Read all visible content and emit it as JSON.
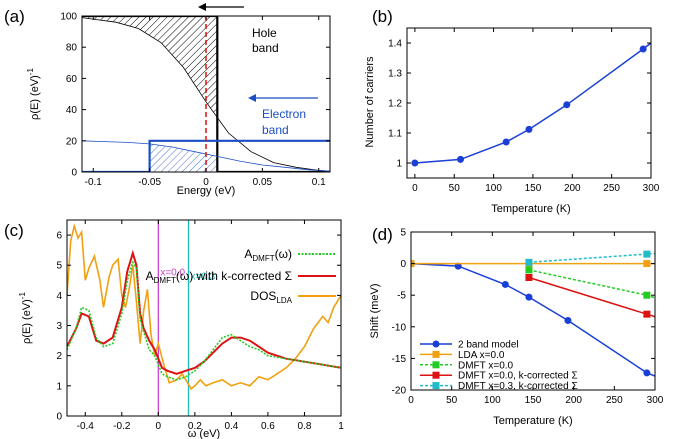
{
  "chart_data": [
    {
      "panel_label": "(a)",
      "type": "area",
      "xlabel": "Energy (eV)",
      "ylabel": "ρ(E) (eV)",
      "ylabel_sup": "-1",
      "xlim": [
        -0.11,
        0.11
      ],
      "ylim": [
        0,
        100
      ],
      "xticks": [
        -0.1,
        -0.05,
        0,
        0.05,
        0.1
      ],
      "xticklabels": [
        "-0.1",
        "-0.05",
        "0",
        "0.05",
        "0.1"
      ],
      "yticks": [
        0,
        20,
        40,
        60,
        80,
        100
      ],
      "annotations": {
        "hole_band_line1": "Hole",
        "hole_band_line2": "band",
        "electron_band_line1": "Electron",
        "electron_band_line2": "band"
      },
      "series": [
        {
          "key": "hole_dos",
          "color": "#000000",
          "x": [
            -0.11,
            -0.08,
            -0.06,
            -0.04,
            -0.02,
            0.0,
            0.02,
            0.04,
            0.06,
            0.08,
            0.1,
            0.11
          ],
          "y": [
            99,
            96,
            92,
            83,
            67,
            45,
            25,
            13,
            6,
            3,
            1,
            0.5
          ]
        },
        {
          "key": "hole_step",
          "color": "#000000",
          "x": [
            -0.11,
            0.01,
            0.01,
            0.11
          ],
          "y": [
            100,
            100,
            0,
            0
          ]
        },
        {
          "key": "electron_dos",
          "color": "#1a4fc4",
          "x": [
            -0.11,
            -0.09,
            -0.07,
            -0.05,
            -0.03,
            -0.01,
            0.01,
            0.03,
            0.05,
            0.07,
            0.09,
            0.11
          ],
          "y": [
            20,
            19.5,
            19,
            18,
            16,
            13,
            10,
            7,
            4.5,
            3,
            1.5,
            0.5
          ]
        },
        {
          "key": "electron_step",
          "color": "#1a4fc4",
          "x": [
            -0.11,
            -0.05,
            -0.05,
            0.11
          ],
          "y": [
            0,
            0,
            20,
            20
          ]
        }
      ],
      "fermi_level_x": 0.0,
      "hole_fermi_x": 0.01
    },
    {
      "panel_label": "(b)",
      "type": "line",
      "xlabel": "Temperature (K)",
      "ylabel": "Number of carriers",
      "xlim": [
        -10,
        300
      ],
      "ylim": [
        0.95,
        1.45
      ],
      "xticks": [
        0,
        50,
        100,
        150,
        200,
        250,
        300
      ],
      "yticks": [
        1,
        1.1,
        1.2,
        1.3,
        1.4
      ],
      "yticklabels": [
        "1",
        "1.1",
        "1.2",
        "1.3",
        "1.4"
      ],
      "series": [
        {
          "key": "carriers",
          "color": "#1a3fd6",
          "x": [
            0,
            58,
            116,
            145,
            193,
            290,
            300
          ],
          "y": [
            1.0,
            1.012,
            1.07,
            1.112,
            1.194,
            1.38,
            1.4
          ],
          "markers": [
            true,
            true,
            true,
            true,
            true,
            true,
            false
          ]
        }
      ]
    },
    {
      "panel_label": "(c)",
      "type": "line",
      "xlabel": "ω (eV)",
      "ylabel": "ρ(E) (eV)",
      "ylabel_sup": "-1",
      "xlim": [
        -0.5,
        1.0
      ],
      "ylim": [
        0,
        6.5
      ],
      "xticks": [
        -0.4,
        -0.2,
        0,
        0.2,
        0.4,
        0.6,
        0.8,
        1.0
      ],
      "xticklabels": [
        "-0.4",
        "-0.2",
        "0",
        "0.2",
        "0.4",
        "0.6",
        "0.8",
        "1"
      ],
      "yticks": [
        0,
        1,
        2,
        3,
        4,
        5,
        6
      ],
      "vlines": [
        {
          "x": 0.0,
          "color": "#cc44cc",
          "label": "x=0.0"
        },
        {
          "x": 0.165,
          "color": "#22bbbb",
          "label": "x=0.3"
        }
      ],
      "series": [
        {
          "key": "dmft",
          "label_main": "A",
          "label_sub": "DMFT",
          "label_tail": "(ω)",
          "color": "#22cc22",
          "dashed": true,
          "x": [
            -0.5,
            -0.45,
            -0.42,
            -0.38,
            -0.34,
            -0.3,
            -0.25,
            -0.2,
            -0.17,
            -0.14,
            -0.12,
            -0.1,
            -0.08,
            -0.05,
            -0.02,
            0.02,
            0.05,
            0.1,
            0.15,
            0.2,
            0.25,
            0.3,
            0.35,
            0.4,
            0.45,
            0.5,
            0.55,
            0.6,
            0.7,
            0.8,
            0.9,
            1.0
          ],
          "y": [
            2.2,
            2.9,
            3.6,
            3.5,
            2.6,
            2.3,
            2.4,
            3.4,
            4.5,
            5.1,
            4.9,
            3.2,
            2.8,
            2.2,
            2.0,
            1.4,
            1.3,
            1.2,
            1.3,
            1.5,
            1.8,
            2.2,
            2.6,
            2.7,
            2.5,
            2.3,
            2.2,
            2.0,
            1.9,
            1.8,
            1.7,
            1.6
          ]
        },
        {
          "key": "dmft_k",
          "label_main": "A",
          "label_sub": "DMFT",
          "label_tail": "(ω) with k-corrected Σ",
          "color": "#dd1111",
          "dashed": false,
          "x": [
            -0.5,
            -0.45,
            -0.42,
            -0.38,
            -0.34,
            -0.3,
            -0.25,
            -0.2,
            -0.17,
            -0.14,
            -0.12,
            -0.1,
            -0.08,
            -0.05,
            -0.02,
            0.02,
            0.05,
            0.1,
            0.15,
            0.2,
            0.25,
            0.3,
            0.35,
            0.4,
            0.45,
            0.5,
            0.55,
            0.6,
            0.7,
            0.8,
            0.9,
            1.0
          ],
          "y": [
            2.3,
            2.9,
            3.4,
            3.3,
            2.5,
            2.4,
            2.6,
            3.6,
            4.8,
            5.4,
            5.0,
            3.4,
            2.9,
            2.5,
            2.2,
            1.6,
            1.5,
            1.4,
            1.5,
            1.6,
            1.8,
            2.1,
            2.4,
            2.6,
            2.6,
            2.5,
            2.3,
            2.1,
            1.9,
            1.8,
            1.7,
            1.6
          ]
        },
        {
          "key": "dos_lda",
          "label_main": "DOS",
          "label_sub": "LDA",
          "label_tail": "",
          "color": "#f0a010",
          "dashed": false,
          "x": [
            -0.5,
            -0.48,
            -0.46,
            -0.44,
            -0.42,
            -0.4,
            -0.38,
            -0.35,
            -0.32,
            -0.3,
            -0.27,
            -0.25,
            -0.22,
            -0.2,
            -0.18,
            -0.16,
            -0.14,
            -0.12,
            -0.1,
            -0.08,
            -0.06,
            -0.04,
            -0.02,
            0.0,
            0.03,
            0.06,
            0.1,
            0.13,
            0.16,
            0.18,
            0.2,
            0.23,
            0.26,
            0.3,
            0.35,
            0.4,
            0.45,
            0.5,
            0.55,
            0.6,
            0.65,
            0.7,
            0.75,
            0.8,
            0.85,
            0.9,
            0.93,
            0.96,
            1.0
          ],
          "y": [
            4.0,
            5.8,
            6.3,
            5.9,
            6.1,
            4.5,
            4.9,
            5.3,
            4.5,
            3.6,
            4.6,
            5.0,
            5.2,
            4.0,
            3.6,
            4.2,
            5.0,
            3.8,
            2.4,
            3.5,
            4.2,
            2.7,
            2.0,
            2.4,
            1.7,
            1.1,
            1.2,
            1.4,
            1.1,
            0.9,
            1.0,
            1.2,
            1.0,
            1.1,
            1.2,
            1.0,
            1.1,
            1.0,
            1.3,
            1.2,
            1.4,
            1.6,
            1.9,
            2.3,
            2.9,
            3.3,
            3.1,
            3.6,
            4.0
          ]
        }
      ]
    },
    {
      "panel_label": "(d)",
      "type": "line",
      "xlabel": "Temperature (K)",
      "ylabel": "Shift (meV)",
      "xlim": [
        0,
        300
      ],
      "ylim": [
        -20,
        5
      ],
      "xticks": [
        0,
        50,
        100,
        150,
        200,
        250,
        300
      ],
      "yticks": [
        -20,
        -15,
        -10,
        -5,
        0,
        5
      ],
      "series": [
        {
          "key": "two_band",
          "label": "2 band model",
          "color": "#1a3fd6",
          "dashed": false,
          "marker": "circle",
          "x": [
            0,
            58,
            116,
            145,
            193,
            290,
            300
          ],
          "y": [
            0,
            -0.4,
            -3.3,
            -5.3,
            -9.0,
            -17.3,
            -17.8
          ],
          "markers": [
            true,
            true,
            true,
            true,
            true,
            true,
            false
          ]
        },
        {
          "key": "lda",
          "label": "LDA x=0.0",
          "color": "#f0a010",
          "dashed": false,
          "marker": "square",
          "x": [
            0,
            145,
            290,
            300
          ],
          "y": [
            0,
            0,
            0,
            0
          ],
          "markers": [
            true,
            true,
            true,
            false
          ]
        },
        {
          "key": "dmft0",
          "label": "DMFT x=0.0",
          "color": "#22cc22",
          "dashed": true,
          "marker": "square",
          "x": [
            145,
            290,
            300
          ],
          "y": [
            -1.0,
            -5.0,
            -5.4
          ],
          "markers": [
            true,
            true,
            false
          ]
        },
        {
          "key": "dmft0k",
          "label": "DMFT x=0.0, k-corrected Σ",
          "color": "#dd1111",
          "dashed": false,
          "marker": "square",
          "x": [
            145,
            290,
            300
          ],
          "y": [
            -2.2,
            -8.0,
            -8.4
          ],
          "markers": [
            true,
            true,
            false
          ]
        },
        {
          "key": "dmft3k",
          "label": "DMFT x=0.3, k-corrected Σ",
          "color": "#22bbcc",
          "dashed": true,
          "marker": "square",
          "x": [
            145,
            290,
            300
          ],
          "y": [
            0.2,
            1.5,
            1.6
          ],
          "markers": [
            true,
            true,
            false
          ]
        }
      ]
    }
  ]
}
